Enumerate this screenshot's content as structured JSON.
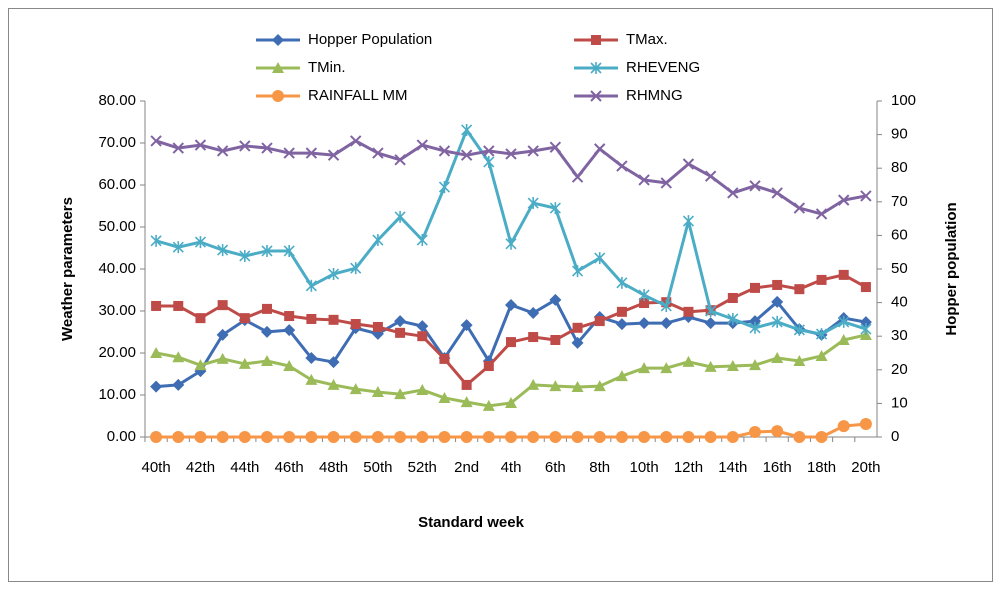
{
  "chart_data": {
    "type": "line",
    "x_label": "Standard week",
    "y_label": "Weather parameters",
    "y2_label": "Hopper population",
    "categories": [
      "40th",
      null,
      "42th",
      null,
      "44th",
      null,
      "46th",
      null,
      "48th",
      null,
      "50th",
      null,
      "52th",
      null,
      "2nd",
      null,
      "4th",
      null,
      "6th",
      null,
      "8th",
      null,
      "10th",
      null,
      "12th",
      null,
      "14th",
      null,
      "16th",
      null,
      "18th",
      null,
      "20th"
    ],
    "ylim": [
      0,
      80
    ],
    "yticks": [
      {
        "value": 0,
        "label": "0.00"
      },
      {
        "value": 10,
        "label": "10.00"
      },
      {
        "value": 20,
        "label": "20.00"
      },
      {
        "value": 30,
        "label": "30.00"
      },
      {
        "value": 40,
        "label": "40.00"
      },
      {
        "value": 50,
        "label": "50.00"
      },
      {
        "value": 60,
        "label": "60.00"
      },
      {
        "value": 70,
        "label": "70.00"
      },
      {
        "value": 80,
        "label": "80.00"
      }
    ],
    "y2lim": [
      0,
      100
    ],
    "y2ticks": [
      0,
      10,
      20,
      30,
      40,
      50,
      60,
      70,
      80,
      90,
      100
    ],
    "grid": false,
    "series": [
      {
        "name": "Hopper Population",
        "color": "#3f6db4",
        "marker": "diamond",
        "axis": "y2",
        "values": [
          15,
          15.5,
          19.6,
          30.4,
          34.8,
          31.3,
          31.8,
          23.5,
          22.3,
          32.4,
          30.7,
          34.5,
          33,
          23.5,
          33.3,
          22.6,
          39.3,
          36.9,
          40.8,
          28,
          35.7,
          33.6,
          33.9,
          33.9,
          35.7,
          33.9,
          33.9,
          34.5,
          40.2,
          32.1,
          30.4,
          35.4,
          34.2
        ]
      },
      {
        "name": "TMax.",
        "color": "#be4b48",
        "marker": "square",
        "values": [
          31.2,
          31.2,
          28.3,
          31.4,
          28.3,
          30.5,
          28.8,
          28.1,
          27.9,
          26.9,
          26.2,
          24.8,
          24,
          18.6,
          12.4,
          16.9,
          22.6,
          23.8,
          23.1,
          26,
          27.6,
          29.8,
          31.9,
          32.1,
          29.8,
          30.2,
          33.1,
          35.5,
          36.2,
          35.2,
          37.4,
          38.6,
          35.7
        ]
      },
      {
        "name": "TMin.",
        "color": "#9bbb59",
        "marker": "triangle",
        "values": [
          20,
          19,
          17.1,
          18.6,
          17.4,
          18.1,
          16.9,
          13.6,
          12.4,
          11.4,
          10.7,
          10.2,
          11.2,
          9.3,
          8.3,
          7.4,
          8.1,
          12.4,
          12.1,
          11.9,
          12.1,
          14.5,
          16.4,
          16.4,
          17.9,
          16.7,
          16.9,
          17.1,
          18.8,
          18.1,
          19.3,
          23.1,
          24.3
        ]
      },
      {
        "name": "RHEVENG",
        "color": "#4bacc6",
        "marker": "asterisk",
        "values": [
          46.7,
          45.2,
          46.4,
          44.5,
          43.1,
          44.3,
          44.3,
          36,
          38.8,
          40.2,
          46.9,
          52.4,
          46.9,
          59.5,
          73.1,
          65.5,
          46,
          55.7,
          54.5,
          39.5,
          42.6,
          36.7,
          33.8,
          31.2,
          51.4,
          30,
          28.1,
          26,
          27.4,
          25.5,
          24.5,
          27.4,
          25.7
        ]
      },
      {
        "name": "RAINFALL MM",
        "color": "#f79646",
        "marker": "circle",
        "values": [
          0,
          0,
          0,
          0,
          0,
          0,
          0,
          0,
          0,
          0,
          0,
          0,
          0,
          0,
          0,
          0,
          0,
          0,
          0,
          0,
          0,
          0,
          0,
          0,
          0,
          0,
          0,
          1.2,
          1.4,
          0,
          0,
          2.6,
          3.1
        ]
      },
      {
        "name": "RHMNG",
        "color": "#8064a2",
        "marker": "x",
        "values": [
          70.5,
          68.8,
          69.5,
          68.1,
          69.3,
          68.8,
          67.6,
          67.6,
          67.1,
          70.5,
          67.6,
          66,
          69.5,
          68.1,
          67.1,
          68.1,
          67.4,
          68.1,
          69,
          61.9,
          68.6,
          64.5,
          61.2,
          60.5,
          65,
          62.1,
          58.1,
          59.8,
          58.1,
          54.5,
          53.1,
          56.4,
          57.4
        ]
      }
    ]
  }
}
